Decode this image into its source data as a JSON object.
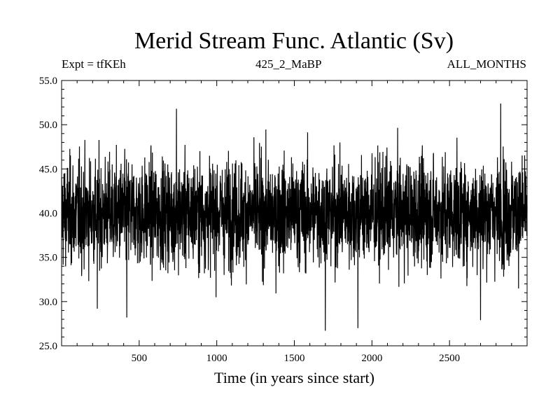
{
  "chart_data": {
    "type": "line",
    "title": "Merid Stream Func. Atlantic (Sv)",
    "subtitle_left": "Expt = tfKEh",
    "subtitle_center": "425_2_MaBP",
    "subtitle_right": "ALL_MONTHS",
    "xlabel": "Time (in years since start)",
    "ylabel": "",
    "xlim": [
      0,
      3000
    ],
    "ylim": [
      25.0,
      55.0
    ],
    "xticks": [
      500,
      1000,
      1500,
      2000,
      2500
    ],
    "yticks": [
      25.0,
      30.0,
      35.0,
      40.0,
      45.0,
      50.0,
      55.0
    ],
    "ytick_labels": [
      "25.0",
      "30.0",
      "35.0",
      "40.0",
      "45.0",
      "50.0",
      "55.0"
    ],
    "grid": false,
    "series": [
      {
        "color": "#000000",
        "n_points": 3000,
        "mean": 40.0,
        "typical_range": [
          34.0,
          46.0
        ],
        "min": 26.7,
        "max": 52.4,
        "notable_extremes": [
          {
            "x": 740,
            "y": 51.8
          },
          {
            "x": 1700,
            "y": 26.7
          },
          {
            "x": 1910,
            "y": 27.0
          },
          {
            "x": 2830,
            "y": 52.4
          },
          {
            "x": 2700,
            "y": 27.9
          },
          {
            "x": 230,
            "y": 29.2
          },
          {
            "x": 420,
            "y": 28.2
          }
        ]
      }
    ]
  }
}
